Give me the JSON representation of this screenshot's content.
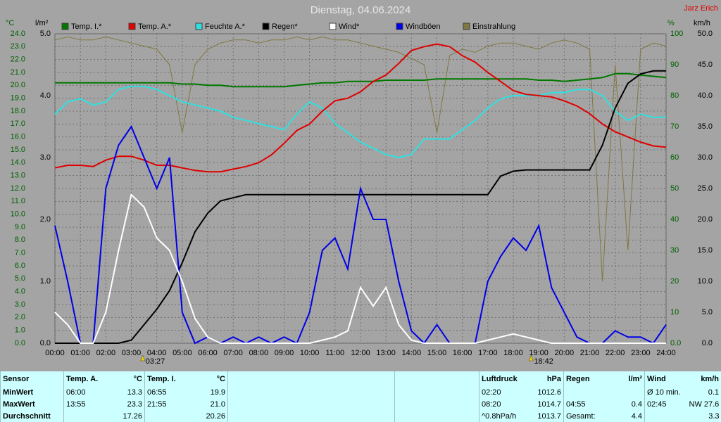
{
  "chart_data": {
    "type": "line",
    "title": "Dienstag, 04.06.2024",
    "author": "Jarz Erich",
    "y_unit": "°C",
    "y2_unit": "l/m²",
    "y3_unit": "%",
    "y4_unit": "km/h",
    "x": [
      0,
      0.5,
      1,
      1.5,
      2,
      2.5,
      3,
      3.5,
      4,
      4.5,
      5,
      5.5,
      6,
      6.5,
      7,
      7.5,
      8,
      8.5,
      9,
      9.5,
      10,
      10.5,
      11,
      11.5,
      12,
      12.5,
      13,
      13.5,
      14,
      14.5,
      15,
      15.5,
      16,
      16.5,
      17,
      17.5,
      18,
      18.5,
      19,
      19.5,
      20,
      20.5,
      21,
      21.5,
      22,
      22.5,
      23,
      23.5,
      24
    ],
    "xlim": [
      0,
      24
    ],
    "xticks": [
      {
        "value": 0,
        "label": "00:00"
      },
      {
        "value": 1,
        "label": "01:00"
      },
      {
        "value": 2,
        "label": "02:00"
      },
      {
        "value": 3,
        "label": "03:00"
      },
      {
        "value": 4,
        "label": "04:00"
      },
      {
        "value": 5,
        "label": "05:00"
      },
      {
        "value": 6,
        "label": "06:00"
      },
      {
        "value": 7,
        "label": "07:00"
      },
      {
        "value": 8,
        "label": "08:00"
      },
      {
        "value": 9,
        "label": "09:00"
      },
      {
        "value": 10,
        "label": "10:00"
      },
      {
        "value": 11,
        "label": "11:00"
      },
      {
        "value": 12,
        "label": "12:00"
      },
      {
        "value": 13,
        "label": "13:00"
      },
      {
        "value": 14,
        "label": "14:00"
      },
      {
        "value": 15,
        "label": "15:00"
      },
      {
        "value": 16,
        "label": "16:00"
      },
      {
        "value": 17,
        "label": "17:00"
      },
      {
        "value": 18,
        "label": "18:00"
      },
      {
        "value": 19,
        "label": "19:00"
      },
      {
        "value": 20,
        "label": "20:00"
      },
      {
        "value": 21,
        "label": "21:00"
      },
      {
        "value": 22,
        "label": "22:00"
      },
      {
        "value": 23,
        "label": "23:00"
      },
      {
        "value": 24,
        "label": "24:00"
      }
    ],
    "ylim": [
      0,
      24
    ],
    "yticks": [
      {
        "value": 0,
        "label": "0.0"
      },
      {
        "value": 1,
        "label": "1.0"
      },
      {
        "value": 2,
        "label": "2.0"
      },
      {
        "value": 3,
        "label": "3.0"
      },
      {
        "value": 4,
        "label": "4.0"
      },
      {
        "value": 5,
        "label": "5.0"
      },
      {
        "value": 6,
        "label": "6.0"
      },
      {
        "value": 7,
        "label": "7.0"
      },
      {
        "value": 8,
        "label": "8.0"
      },
      {
        "value": 9,
        "label": "9.0"
      },
      {
        "value": 10,
        "label": "10.0"
      },
      {
        "value": 11,
        "label": "11.0"
      },
      {
        "value": 12,
        "label": "12.0"
      },
      {
        "value": 13,
        "label": "13.0"
      },
      {
        "value": 14,
        "label": "14.0"
      },
      {
        "value": 15,
        "label": "15.0"
      },
      {
        "value": 16,
        "label": "16.0"
      },
      {
        "value": 17,
        "label": "17.0"
      },
      {
        "value": 18,
        "label": "18.0"
      },
      {
        "value": 19,
        "label": "19.0"
      },
      {
        "value": 20,
        "label": "20.0"
      },
      {
        "value": 21,
        "label": "21.0"
      },
      {
        "value": 22,
        "label": "22.0"
      },
      {
        "value": 23,
        "label": "23.0"
      },
      {
        "value": 24,
        "label": "24.0"
      }
    ],
    "y2lim": [
      0,
      5
    ],
    "y2ticks": [
      {
        "value": 0,
        "label": "0.0"
      },
      {
        "value": 1,
        "label": "1.0"
      },
      {
        "value": 2,
        "label": "2.0"
      },
      {
        "value": 3,
        "label": "3.0"
      },
      {
        "value": 4,
        "label": "4.0"
      },
      {
        "value": 5,
        "label": "5.0"
      }
    ],
    "y3lim": [
      0,
      100
    ],
    "y3ticks": [
      {
        "value": 0,
        "label": "0.0"
      },
      10,
      20,
      30,
      40,
      50,
      60,
      70,
      80,
      90,
      100
    ],
    "y4lim": [
      0,
      50
    ],
    "y4ticks": [
      {
        "value": 0,
        "label": "0.0"
      },
      {
        "value": 5,
        "label": "5.0"
      },
      {
        "value": 10,
        "label": "10.0"
      },
      {
        "value": 15,
        "label": "15.0"
      },
      {
        "value": 20,
        "label": "20.0"
      },
      {
        "value": 25,
        "label": "25.0"
      },
      {
        "value": 30,
        "label": "30.0"
      },
      {
        "value": 35,
        "label": "35.0"
      },
      {
        "value": 40,
        "label": "40.0"
      },
      {
        "value": 45,
        "label": "45.0"
      },
      {
        "value": 50,
        "label": "50.0"
      }
    ],
    "grid": true,
    "series": [
      {
        "name": "Temp. I.*",
        "color": "#007800",
        "axis": "y",
        "values": [
          20.2,
          20.2,
          20.2,
          20.2,
          20.2,
          20.2,
          20.2,
          20.2,
          20.2,
          20.2,
          20.1,
          20.1,
          20.0,
          20.0,
          19.9,
          19.9,
          19.9,
          19.9,
          19.9,
          20.0,
          20.1,
          20.2,
          20.2,
          20.3,
          20.3,
          20.3,
          20.4,
          20.4,
          20.4,
          20.4,
          20.5,
          20.5,
          20.5,
          20.5,
          20.5,
          20.5,
          20.5,
          20.5,
          20.4,
          20.4,
          20.3,
          20.4,
          20.5,
          20.6,
          20.9,
          20.9,
          20.8,
          20.7,
          20.6
        ]
      },
      {
        "name": "Temp. A.*",
        "color": "#e00000",
        "axis": "y",
        "values": [
          13.6,
          13.8,
          13.8,
          13.7,
          14.2,
          14.5,
          14.5,
          14.2,
          13.8,
          13.8,
          13.6,
          13.4,
          13.3,
          13.3,
          13.5,
          13.7,
          14.0,
          14.6,
          15.5,
          16.5,
          17.0,
          18.0,
          18.8,
          19.0,
          19.5,
          20.3,
          20.8,
          21.7,
          22.7,
          23.0,
          23.2,
          23.0,
          22.3,
          21.8,
          21.0,
          20.3,
          19.6,
          19.3,
          19.2,
          19.1,
          18.8,
          18.4,
          17.8,
          17.0,
          16.4,
          16.0,
          15.6,
          15.3,
          15.2
        ]
      },
      {
        "name": "Feuchte A.*",
        "color": "#30e0e0",
        "axis": "y3",
        "values": [
          74,
          78,
          79,
          77,
          78,
          82,
          83,
          83,
          82,
          80,
          78,
          77,
          76,
          75,
          73,
          72,
          71,
          70,
          69,
          74,
          78,
          76,
          71,
          68,
          65,
          63,
          61,
          60,
          61,
          66,
          66,
          66,
          69,
          72,
          76,
          79,
          80,
          80,
          80,
          81,
          81,
          82,
          82,
          80,
          75,
          72,
          74,
          73,
          73
        ]
      },
      {
        "name": "Regen*",
        "color": "#000000",
        "axis": "y2",
        "values": [
          0,
          0,
          0,
          0,
          0,
          0,
          0.05,
          0.3,
          0.55,
          0.85,
          1.3,
          1.8,
          2.1,
          2.3,
          2.35,
          2.4,
          2.4,
          2.4,
          2.4,
          2.4,
          2.4,
          2.4,
          2.4,
          2.4,
          2.4,
          2.4,
          2.4,
          2.4,
          2.4,
          2.4,
          2.4,
          2.4,
          2.4,
          2.4,
          2.4,
          2.7,
          2.78,
          2.8,
          2.8,
          2.8,
          2.8,
          2.8,
          2.8,
          3.2,
          3.8,
          4.2,
          4.35,
          4.4,
          4.4
        ]
      },
      {
        "name": "Wind*",
        "color": "#ffffff",
        "axis": "y4",
        "values": [
          5,
          3,
          0,
          0,
          5,
          15,
          24,
          22,
          17,
          15,
          10,
          4,
          1,
          0,
          0,
          0,
          0,
          0,
          0,
          0,
          0,
          0.5,
          1,
          2,
          9,
          6,
          9,
          3,
          0.5,
          0,
          0,
          0,
          0,
          0,
          0.5,
          1,
          1.5,
          1,
          0.5,
          0,
          0,
          0,
          0,
          0,
          0,
          0,
          0,
          0,
          0
        ]
      },
      {
        "name": "Windböen",
        "color": "#0000e8",
        "axis": "y4",
        "values": [
          19,
          10,
          0,
          0,
          25,
          32,
          35,
          30,
          25,
          30,
          5,
          0,
          1,
          0,
          1,
          0,
          1,
          0,
          1,
          0,
          5,
          15,
          17,
          12,
          25,
          20,
          20,
          10,
          2,
          0,
          3,
          0,
          0,
          0,
          10,
          14,
          17,
          15,
          19,
          9,
          5,
          1,
          0,
          0,
          2,
          1,
          1,
          0,
          3
        ]
      },
      {
        "name": "Einstrahlung",
        "color": "#807840",
        "axis": "y3",
        "values": [
          98,
          99,
          98,
          98,
          99,
          98,
          97,
          96,
          95,
          90,
          68,
          90,
          95,
          97,
          98,
          98,
          97,
          98,
          98,
          99,
          98,
          99,
          98,
          98,
          97,
          96,
          95,
          94,
          92,
          90,
          68,
          93,
          95,
          94,
          96,
          97,
          97,
          96,
          95,
          97,
          98,
          97,
          95,
          20,
          90,
          30,
          95,
          97,
          96
        ]
      }
    ],
    "annotations": [
      {
        "x": 3.45,
        "label": "03:27"
      },
      {
        "x": 18.7,
        "label": "18:42"
      }
    ]
  },
  "table": {
    "header": [
      "Sensor",
      "Temp. A.",
      "°C",
      "Temp. I.",
      "°C",
      "Luftdruck",
      "hPa",
      "Regen",
      "l/m²",
      "Wind",
      "km/h"
    ],
    "rows": [
      [
        "MinWert",
        "06:00",
        "13.3",
        "06:55",
        "19.9",
        "02:20",
        "1012.6",
        null,
        null,
        "Ø 10 min.",
        "0.1"
      ],
      [
        "MaxWert",
        "13:55",
        "23.3",
        "21:55",
        "21.0",
        "08:20",
        "1014.7",
        "04:55",
        "0.4",
        "02:45",
        "NW 27.6"
      ],
      [
        "Durchschnitt",
        null,
        "17.26",
        null,
        "20.26",
        "^0.8hPa/h",
        "1013.7",
        "Gesamt:",
        "4.4",
        null,
        "3.3"
      ]
    ]
  }
}
